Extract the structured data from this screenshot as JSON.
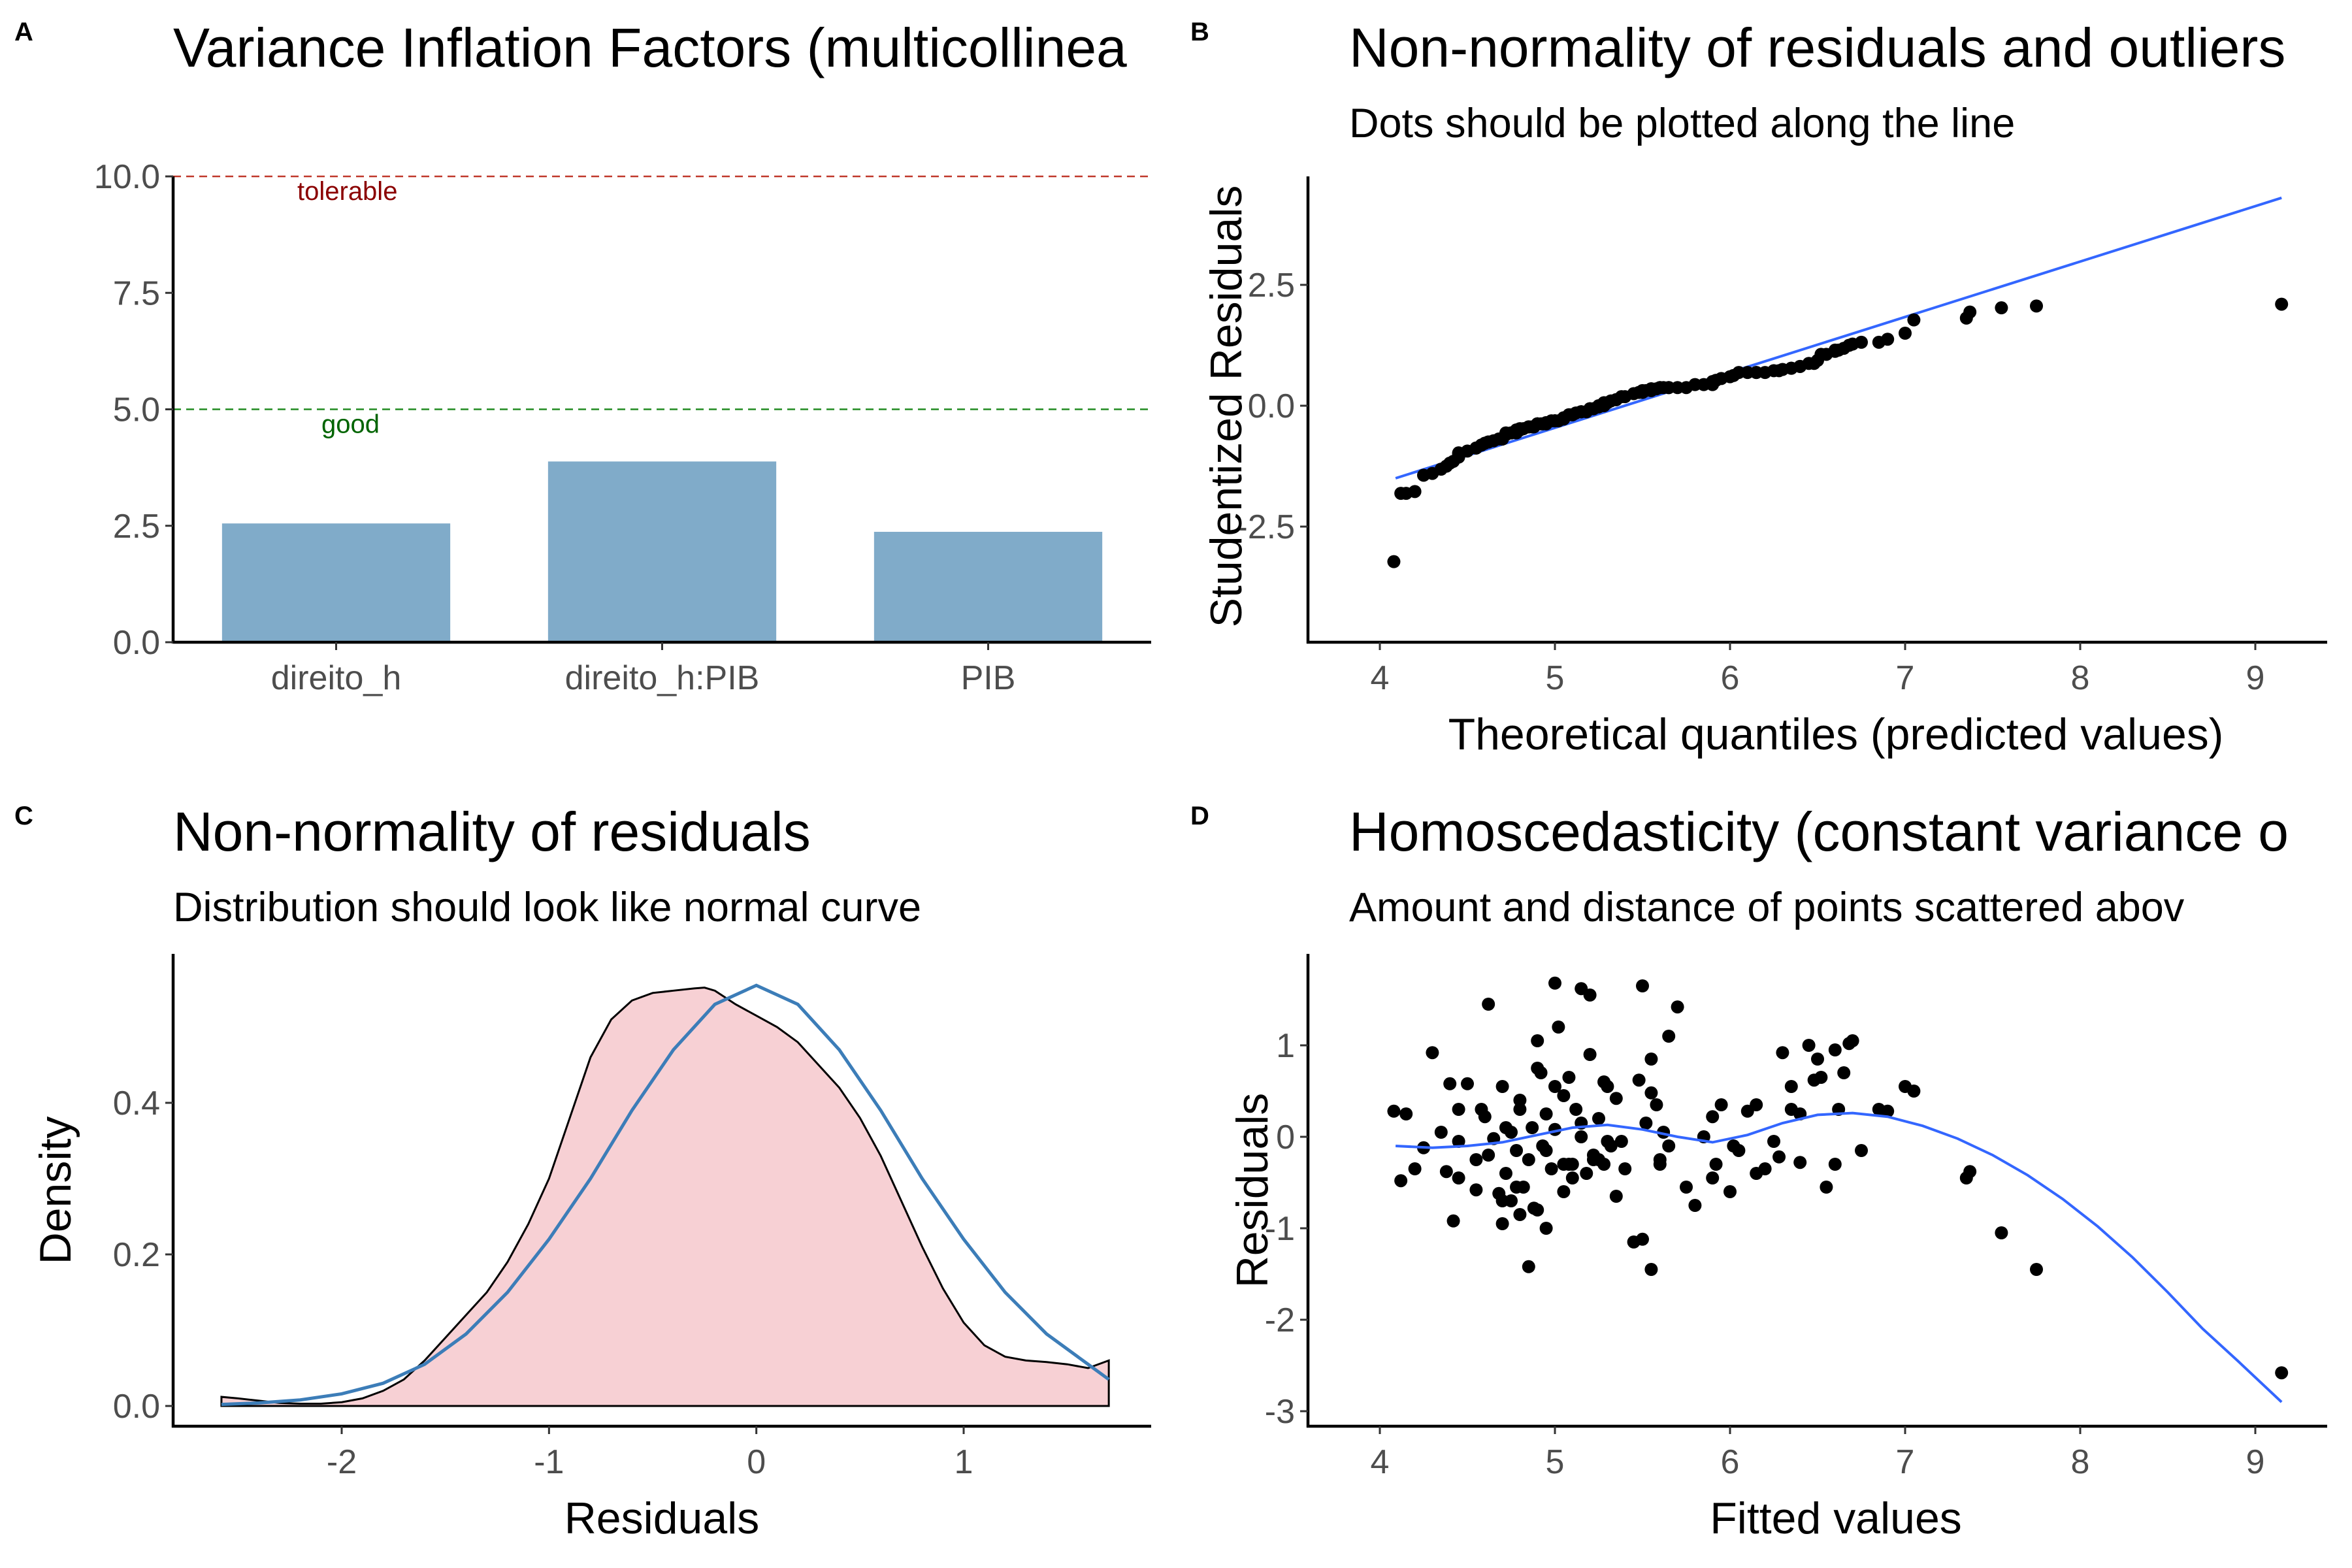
{
  "figure": {
    "panels": {
      "A": "A",
      "B": "B",
      "C": "C",
      "D": "D"
    }
  },
  "colors": {
    "bar_fill": "#80abc9",
    "tolerable_line": "#c0392b",
    "tolerable_text": "#8b0000",
    "good_line": "#228b22",
    "good_text": "#006400",
    "density_fill": "#f7d0d4",
    "normal_curve": "#3c7db8",
    "fit_line": "#3366ff",
    "points": "#000000"
  },
  "chart_data": [
    {
      "id": "A",
      "type": "bar",
      "title": "Variance Inflation Factors (multicollinea",
      "subtitle": "",
      "xlabel": "",
      "ylabel": "",
      "categories": [
        "direito_h",
        "direito_h:PIB",
        "PIB"
      ],
      "values": [
        2.55,
        3.88,
        2.37
      ],
      "ylim": [
        0,
        10
      ],
      "yticks": [
        0.0,
        2.5,
        5.0,
        7.5,
        10.0
      ],
      "ytick_labels": [
        "0.0",
        "2.5",
        "5.0",
        "7.5",
        "10.0"
      ],
      "reference_lines": [
        {
          "value": 10,
          "label": "tolerable",
          "style": "dashed",
          "color": "#c0392b"
        },
        {
          "value": 5,
          "label": "good",
          "style": "dashed",
          "color": "#228b22"
        }
      ],
      "grid": false
    },
    {
      "id": "B",
      "type": "scatter",
      "title": "Non-normality of residuals and outliers",
      "subtitle": "Dots should be plotted along the line",
      "xlabel": "Theoretical quantiles (predicted values)",
      "ylabel": "Studentized Residuals",
      "xlim": [
        3.9,
        9.35
      ],
      "ylim": [
        -4.85,
        4.95
      ],
      "xticks": [
        4,
        5,
        6,
        7,
        8,
        9
      ],
      "xtick_labels": [
        "4",
        "5",
        "6",
        "7",
        "8",
        "9"
      ],
      "yticks": [
        -2.5,
        0.0,
        2.5
      ],
      "ytick_labels": [
        "-2.5",
        "0.0",
        "2.5"
      ],
      "reference_line": {
        "x": [
          4.09,
          9.15
        ],
        "y": [
          -1.5,
          4.3
        ]
      },
      "grid": false
    },
    {
      "id": "C",
      "type": "area",
      "title": "Non-normality of residuals",
      "subtitle": "Distribution should look like normal curve",
      "xlabel": "Residuals",
      "ylabel": "Density",
      "xlim": [
        -2.8,
        1.9
      ],
      "ylim": [
        -0.02,
        0.58
      ],
      "xticks": [
        -2,
        -1,
        0,
        1
      ],
      "xtick_labels": [
        "-2",
        "-1",
        "0",
        "1"
      ],
      "yticks": [
        0.0,
        0.2,
        0.4
      ],
      "ytick_labels": [
        "0.0",
        "0.2",
        "0.4"
      ],
      "series": [
        {
          "name": "",
          "kind": "density",
          "x": [
            -2.58,
            -2.5,
            -2.4,
            -2.3,
            -2.2,
            -2.1,
            -2.0,
            -1.9,
            -1.8,
            -1.7,
            -1.6,
            -1.5,
            -1.4,
            -1.3,
            -1.2,
            -1.1,
            -1.0,
            -0.9,
            -0.8,
            -0.7,
            -0.6,
            -0.5,
            -0.4,
            -0.3,
            -0.25,
            -0.2,
            -0.1,
            0.0,
            0.1,
            0.2,
            0.3,
            0.4,
            0.5,
            0.6,
            0.7,
            0.8,
            0.9,
            1.0,
            1.1,
            1.2,
            1.3,
            1.4,
            1.5,
            1.6,
            1.7
          ],
          "y": [
            0.012,
            0.01,
            0.007,
            0.004,
            0.003,
            0.003,
            0.005,
            0.01,
            0.02,
            0.035,
            0.06,
            0.09,
            0.12,
            0.15,
            0.19,
            0.24,
            0.3,
            0.38,
            0.46,
            0.51,
            0.535,
            0.545,
            0.548,
            0.551,
            0.552,
            0.548,
            0.53,
            0.515,
            0.5,
            0.48,
            0.45,
            0.42,
            0.38,
            0.33,
            0.27,
            0.21,
            0.155,
            0.11,
            0.08,
            0.065,
            0.06,
            0.058,
            0.055,
            0.05,
            0.06
          ]
        },
        {
          "name": "",
          "kind": "normal",
          "x": [
            -2.58,
            -2.4,
            -2.2,
            -2.0,
            -1.8,
            -1.6,
            -1.4,
            -1.2,
            -1.0,
            -0.8,
            -0.6,
            -0.4,
            -0.2,
            0.0,
            0.2,
            0.4,
            0.6,
            0.8,
            1.0,
            1.2,
            1.4,
            1.6,
            1.7
          ],
          "y": [
            0.002,
            0.004,
            0.008,
            0.016,
            0.03,
            0.055,
            0.095,
            0.15,
            0.22,
            0.3,
            0.39,
            0.47,
            0.53,
            0.555,
            0.53,
            0.47,
            0.39,
            0.3,
            0.22,
            0.15,
            0.095,
            0.055,
            0.035
          ]
        }
      ],
      "grid": false
    },
    {
      "id": "D",
      "type": "scatter",
      "title": "Homoscedasticity (constant variance o",
      "subtitle": "Amount and distance of points scattered abov",
      "xlabel": "Fitted values",
      "ylabel": "Residuals",
      "xlim": [
        3.9,
        9.35
      ],
      "ylim": [
        -3.1,
        1.95
      ],
      "xticks": [
        4,
        5,
        6,
        7,
        8,
        9
      ],
      "xtick_labels": [
        "4",
        "5",
        "6",
        "7",
        "8",
        "9"
      ],
      "yticks": [
        -3,
        -2,
        -1,
        0,
        1
      ],
      "ytick_labels": [
        "-3",
        "-2",
        "-1",
        "0",
        "1"
      ],
      "smooth_line": {
        "x": [
          4.09,
          4.3,
          4.5,
          4.7,
          4.9,
          5.1,
          5.3,
          5.5,
          5.7,
          5.9,
          6.1,
          6.3,
          6.5,
          6.7,
          6.9,
          7.1,
          7.3,
          7.5,
          7.7,
          7.9,
          8.1,
          8.3,
          8.5,
          8.7,
          8.9,
          9.15
        ],
        "y": [
          -0.1,
          -0.12,
          -0.1,
          -0.06,
          0.02,
          0.1,
          0.13,
          0.08,
          0.0,
          -0.06,
          0.02,
          0.15,
          0.24,
          0.26,
          0.22,
          0.12,
          -0.02,
          -0.2,
          -0.42,
          -0.68,
          -0.98,
          -1.32,
          -1.7,
          -2.1,
          -2.45,
          -2.9
        ]
      },
      "points": {
        "x": [
          4.08,
          4.15,
          4.12,
          4.2,
          4.25,
          4.3,
          4.35,
          4.38,
          4.4,
          4.42,
          4.45,
          4.45,
          4.5,
          4.55,
          4.55,
          4.6,
          4.62,
          4.65,
          4.68,
          4.7,
          4.7,
          4.72,
          4.75,
          4.75,
          4.78,
          4.8,
          4.8,
          4.82,
          4.85,
          4.85,
          4.87,
          4.9,
          4.9,
          4.92,
          4.95,
          4.95,
          4.98,
          5.0,
          5.0,
          5.02,
          5.05,
          5.05,
          5.08,
          5.1,
          5.12,
          5.15,
          5.15,
          5.18,
          5.2,
          5.2,
          5.22,
          5.25,
          5.25,
          5.28,
          5.3,
          5.32,
          5.35,
          5.35,
          5.4,
          5.45,
          5.5,
          5.52,
          5.55,
          5.55,
          5.58,
          5.6,
          5.62,
          5.65,
          5.7,
          5.75,
          5.8,
          5.85,
          5.9,
          5.9,
          5.95,
          6.0,
          6.05,
          6.1,
          6.15,
          6.2,
          6.25,
          6.3,
          6.35,
          6.4,
          6.45,
          6.5,
          6.55,
          6.6,
          6.65,
          6.7,
          6.75,
          6.85,
          6.9,
          7.0,
          7.05,
          7.35,
          7.37,
          7.55,
          7.75,
          9.15,
          4.45,
          4.62,
          4.7,
          4.72,
          4.78,
          4.8,
          4.88,
          4.9,
          4.93,
          5.0,
          5.05,
          5.1,
          5.15,
          5.22,
          5.28,
          5.3,
          5.5,
          5.55,
          5.6,
          5.65,
          5.92,
          6.02,
          6.15,
          6.28,
          6.35,
          6.4,
          6.48,
          6.52,
          6.6,
          6.62,
          6.68,
          4.58,
          4.95,
          5.08,
          5.48,
          5.38
        ],
        "y": [
          0.28,
          0.25,
          -0.48,
          -0.35,
          -0.12,
          0.92,
          0.05,
          -0.38,
          0.58,
          -0.92,
          0.3,
          -0.45,
          0.58,
          -0.25,
          -0.58,
          0.22,
          1.45,
          -0.02,
          -0.62,
          -0.95,
          0.55,
          -0.4,
          0.05,
          -0.7,
          -0.15,
          -0.85,
          0.3,
          -0.55,
          -1.42,
          -0.25,
          0.1,
          1.05,
          -0.8,
          0.7,
          0.25,
          -1.0,
          -0.35,
          1.68,
          0.55,
          1.2,
          0.45,
          -0.6,
          0.65,
          -0.3,
          0.3,
          1.62,
          0.0,
          -0.4,
          1.55,
          0.9,
          -0.2,
          0.2,
          -0.25,
          -0.3,
          0.55,
          -0.1,
          0.42,
          -0.65,
          -0.35,
          -1.15,
          1.65,
          0.15,
          0.85,
          -1.45,
          0.35,
          -0.25,
          0.05,
          1.1,
          1.42,
          -0.55,
          -0.75,
          0.0,
          -0.45,
          0.22,
          0.35,
          -0.6,
          -0.15,
          0.28,
          0.35,
          -0.35,
          -0.05,
          0.92,
          0.55,
          0.25,
          1.0,
          0.85,
          -0.55,
          0.95,
          0.7,
          1.05,
          -0.15,
          0.3,
          0.28,
          0.55,
          0.5,
          -0.45,
          -0.38,
          -1.05,
          -1.45,
          -2.58,
          -0.05,
          -0.2,
          -0.7,
          0.1,
          -0.55,
          0.4,
          -0.78,
          0.75,
          -0.1,
          0.08,
          -0.3,
          -0.45,
          0.15,
          -0.25,
          0.6,
          -0.05,
          -1.12,
          0.48,
          -0.3,
          -0.1,
          -0.3,
          -0.1,
          -0.4,
          -0.22,
          0.3,
          -0.28,
          0.62,
          0.65,
          -0.3,
          0.3,
          1.02,
          0.3,
          -0.15,
          -0.3,
          0.62,
          -0.05
        ],
        "size_hint": "uniform"
      },
      "grid": false
    }
  ]
}
